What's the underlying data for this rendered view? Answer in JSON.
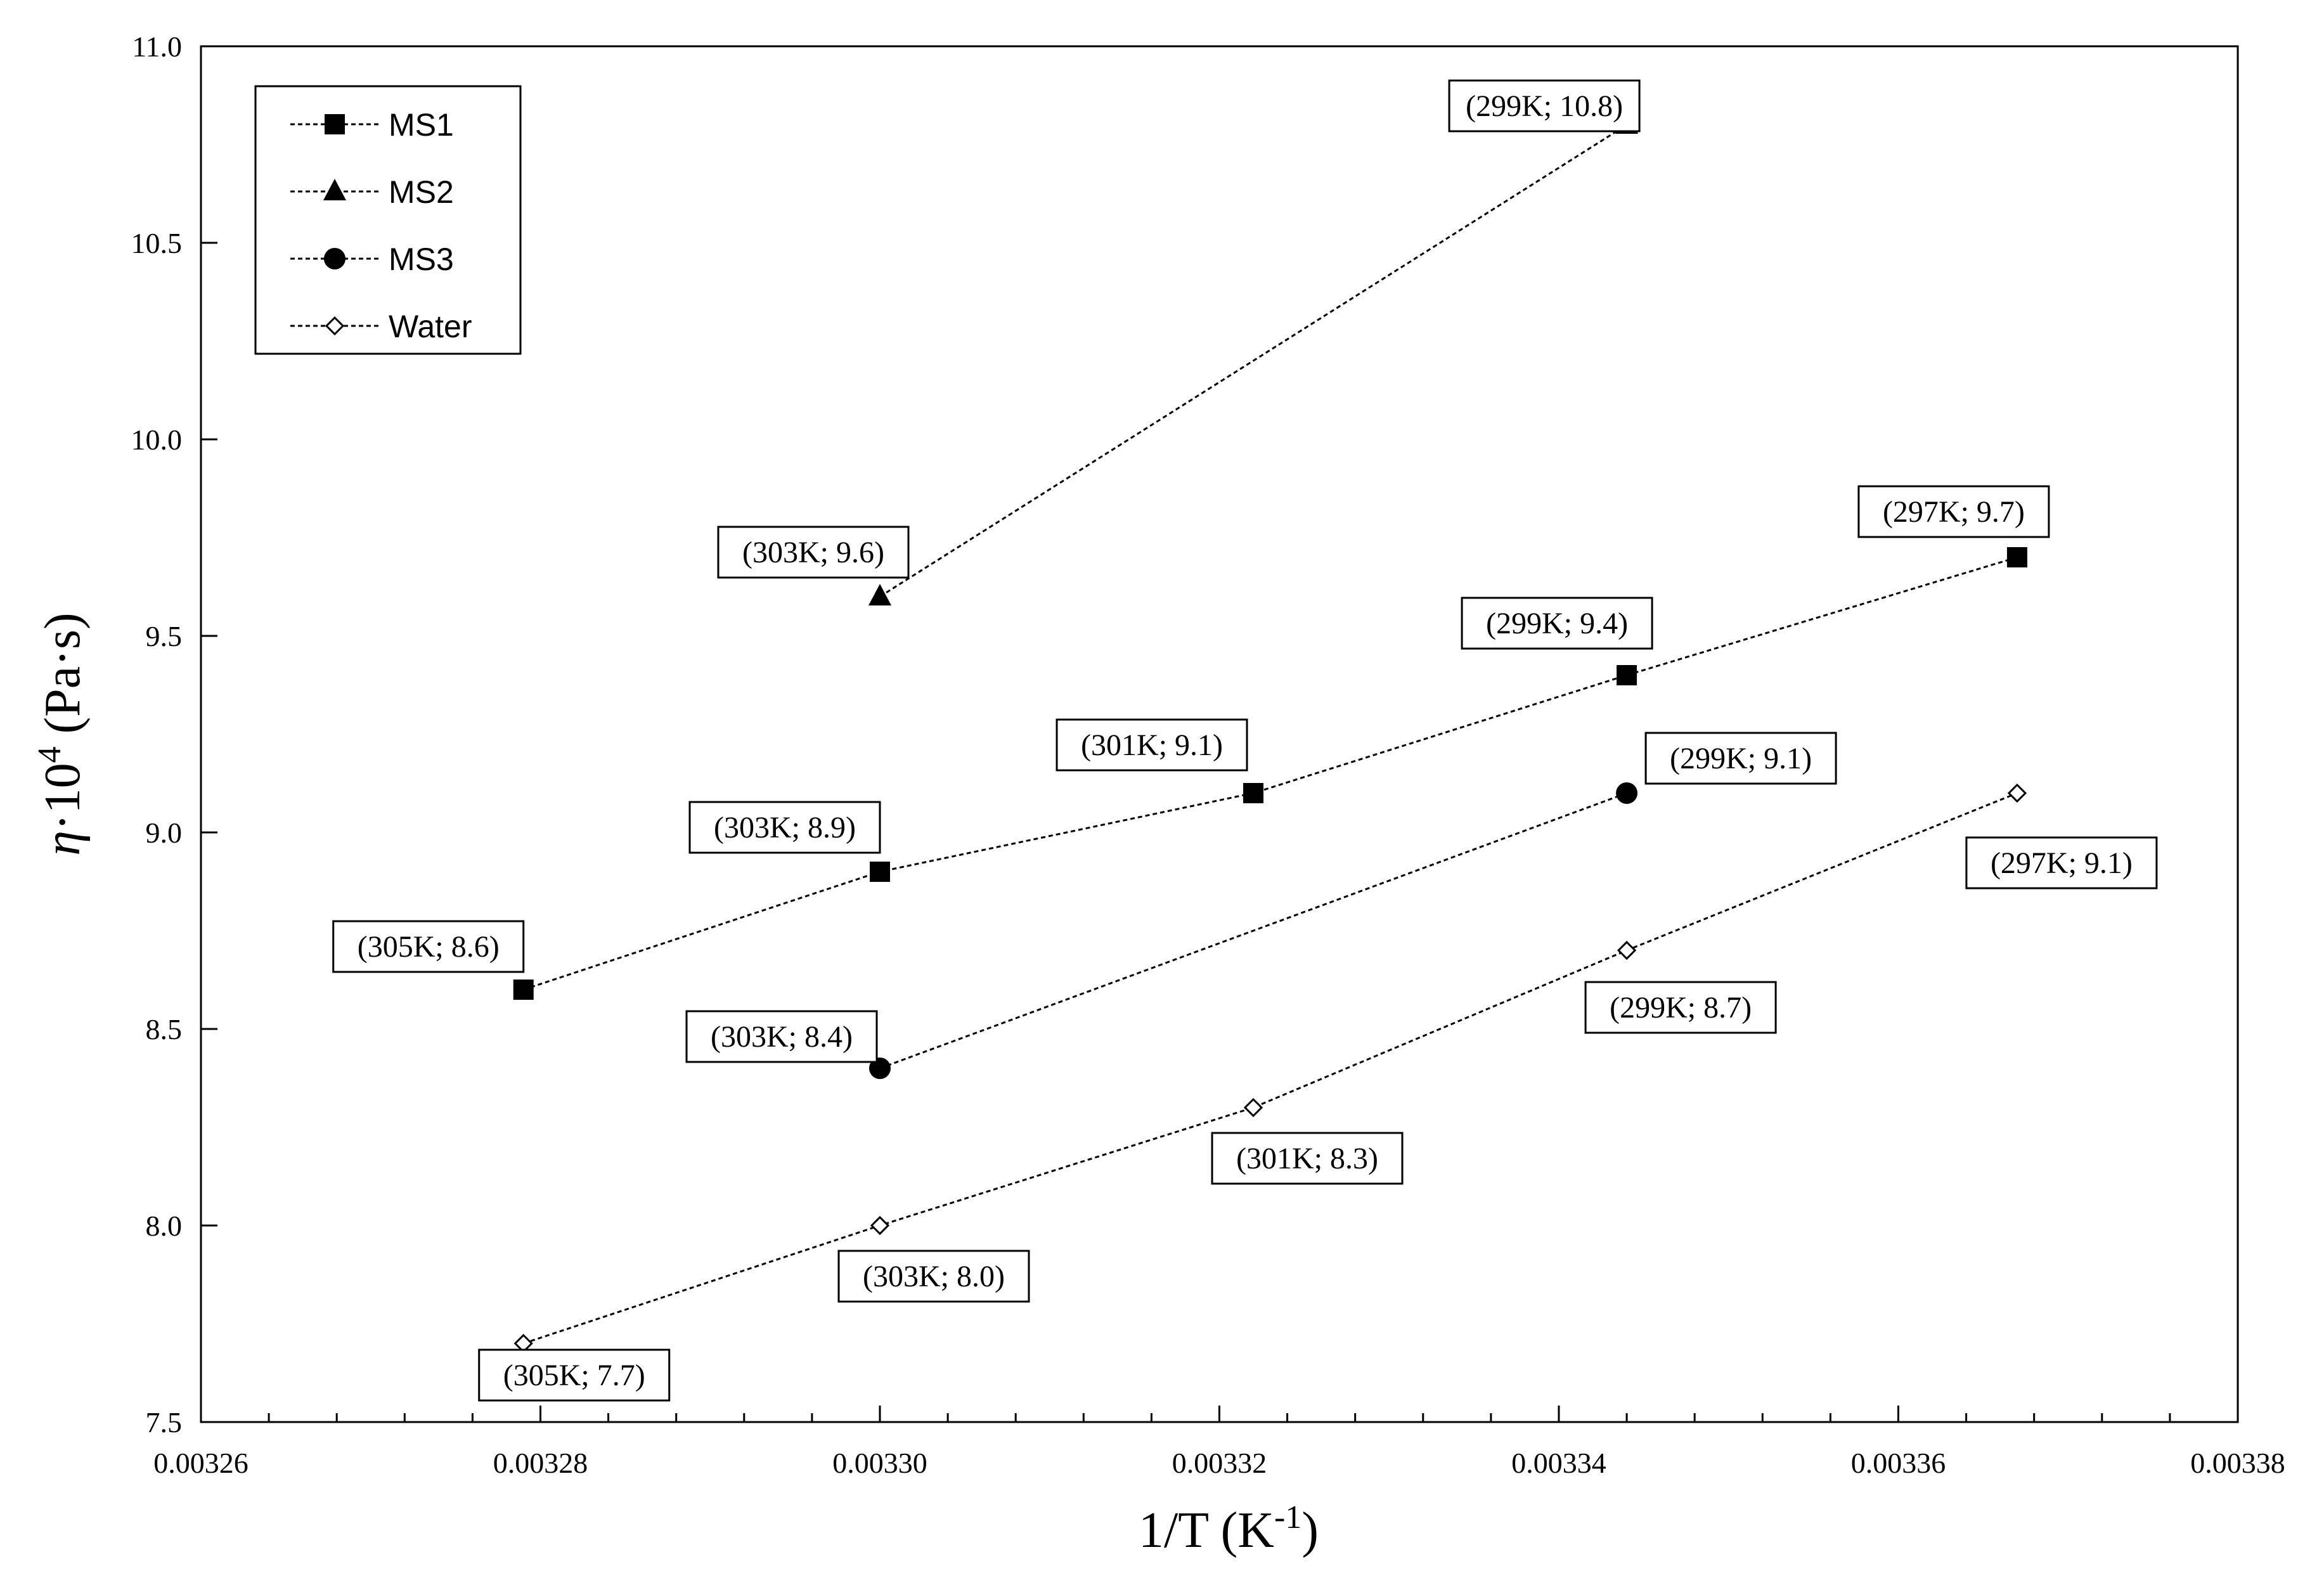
{
  "chart_data": {
    "type": "line",
    "xlabel_main": "1/T (K",
    "xlabel_sup": "-1",
    "xlabel_end": ")",
    "ylabel_sym": "η",
    "ylabel_mid": "·10",
    "ylabel_sup": "4",
    "ylabel_unit": " (Pa·s)",
    "xlim": [
      0.00326,
      0.00338
    ],
    "ylim": [
      7.5,
      11.0
    ],
    "x_ticks": [
      "0.00326",
      "0.00328",
      "0.00330",
      "0.00332",
      "0.00334",
      "0.00336",
      "0.00338"
    ],
    "y_ticks": [
      "7.5",
      "8.0",
      "8.5",
      "9.0",
      "9.5",
      "10.0",
      "10.5",
      "11.0"
    ],
    "grid": false,
    "legend_position": "top-left",
    "series": [
      {
        "name": "MS1",
        "marker": "square",
        "points": [
          {
            "x": 0.003279,
            "y": 8.6,
            "label": "(305K; 8.6)"
          },
          {
            "x": 0.0033,
            "y": 8.9,
            "label": "(303K; 8.9)"
          },
          {
            "x": 0.003322,
            "y": 9.1,
            "label": "(301K; 9.1)"
          },
          {
            "x": 0.003344,
            "y": 9.4,
            "label": "(299K; 9.4)"
          },
          {
            "x": 0.003367,
            "y": 9.7,
            "label": "(297K; 9.7)"
          }
        ]
      },
      {
        "name": "MS2",
        "marker": "triangle",
        "points": [
          {
            "x": 0.0033,
            "y": 9.6,
            "label": "(303K; 9.6)"
          },
          {
            "x": 0.003344,
            "y": 10.8,
            "label": "(299K; 10.8)"
          }
        ]
      },
      {
        "name": "MS3",
        "marker": "circle",
        "points": [
          {
            "x": 0.0033,
            "y": 8.4,
            "label": "(303K; 8.4)"
          },
          {
            "x": 0.003344,
            "y": 9.1,
            "label": "(299K; 9.1)"
          }
        ]
      },
      {
        "name": "Water",
        "marker": "diamond-open",
        "points": [
          {
            "x": 0.003279,
            "y": 7.7,
            "label": "(305K; 7.7)"
          },
          {
            "x": 0.0033,
            "y": 8.0,
            "label": "(303K; 8.0)"
          },
          {
            "x": 0.003322,
            "y": 8.3,
            "label": "(301K; 8.3)"
          },
          {
            "x": 0.003344,
            "y": 8.7,
            "label": "(299K; 8.7)"
          },
          {
            "x": 0.003367,
            "y": 9.1,
            "label": "(297K; 9.1)"
          }
        ]
      }
    ]
  }
}
